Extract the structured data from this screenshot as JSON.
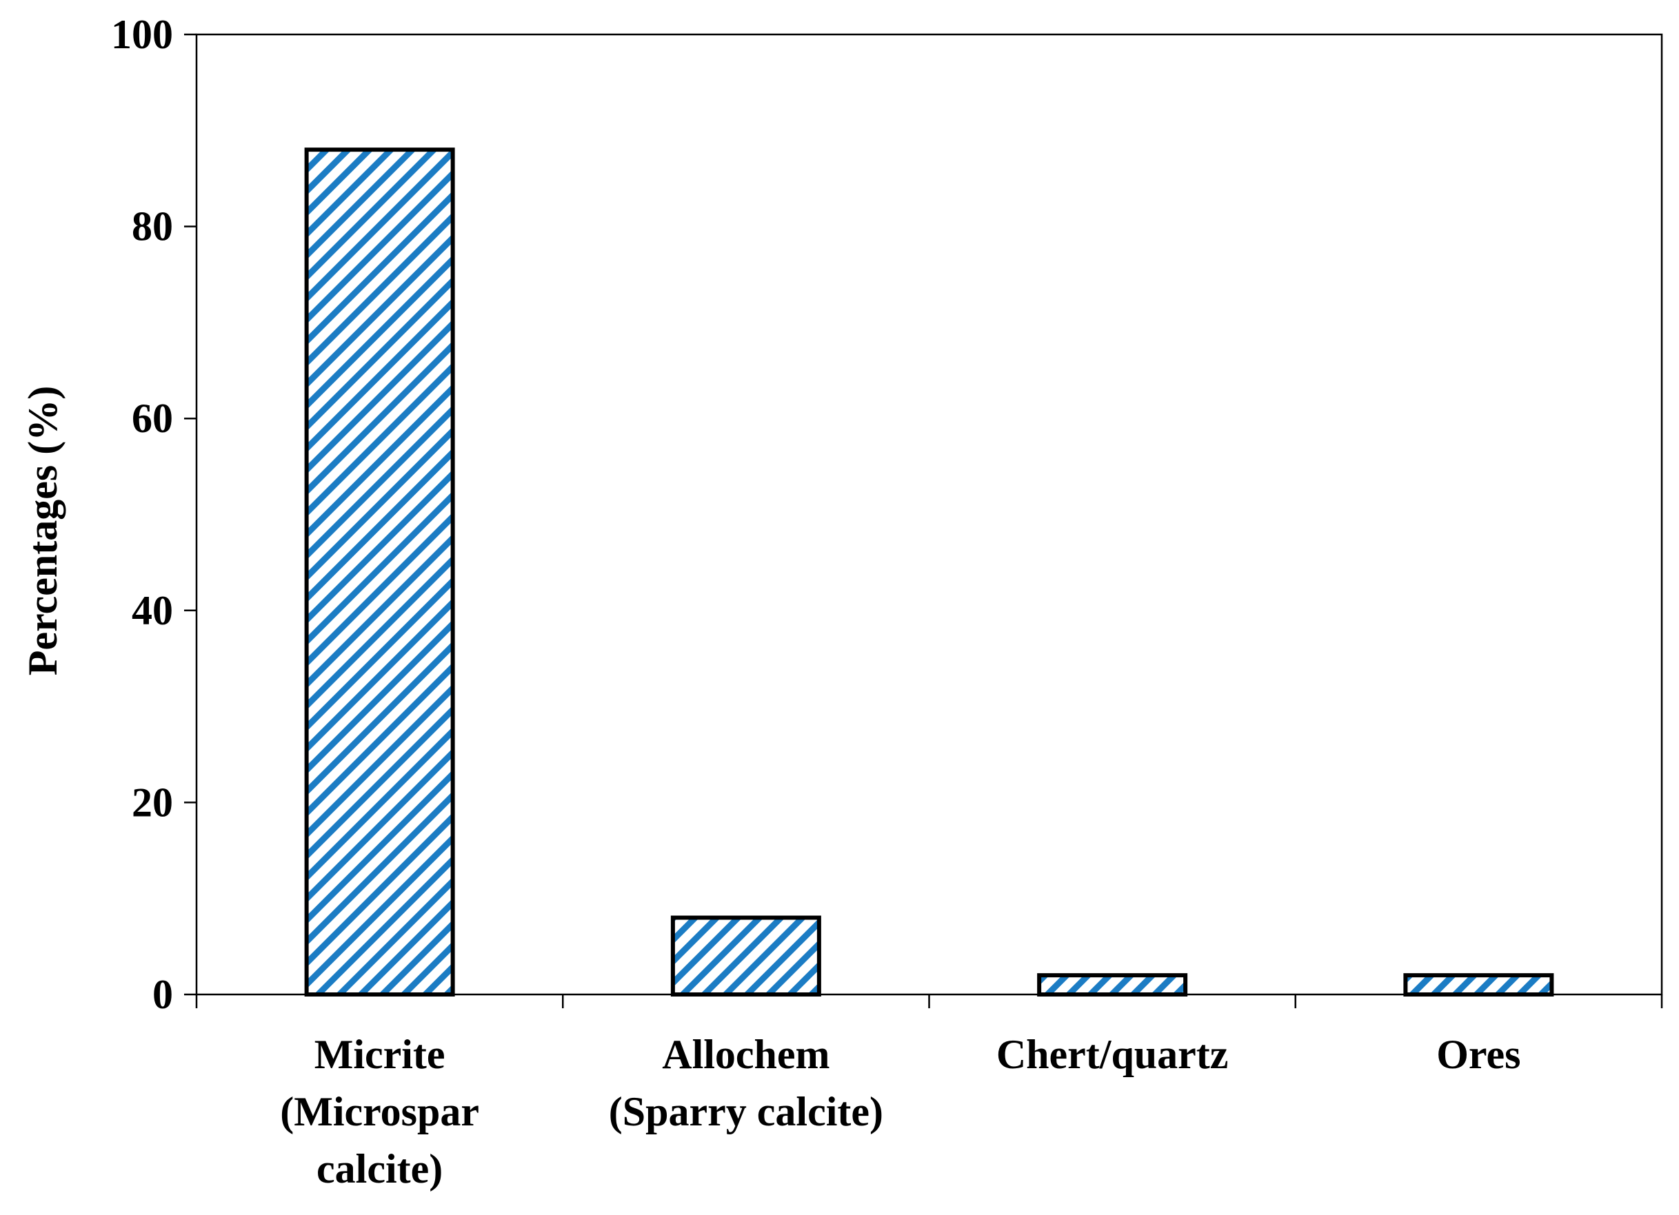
{
  "chart_data": {
    "type": "bar",
    "categories": [
      [
        "Micrite",
        "(Microspar",
        "calcite)"
      ],
      [
        "Allochem",
        "(Sparry calcite)"
      ],
      [
        "Chert/quartz"
      ],
      [
        "Ores"
      ]
    ],
    "values": [
      88,
      8,
      2,
      2
    ],
    "ylabel": "Percentages (%)",
    "xlabel": "",
    "ylim": [
      0,
      100
    ],
    "yticks": [
      "0",
      "20",
      "40",
      "60",
      "80",
      "100"
    ],
    "grid": false,
    "legend": "none",
    "bar_fill": "hatched",
    "hatch_color": "#1b7cc4",
    "bar_edge_color": "#000000"
  }
}
